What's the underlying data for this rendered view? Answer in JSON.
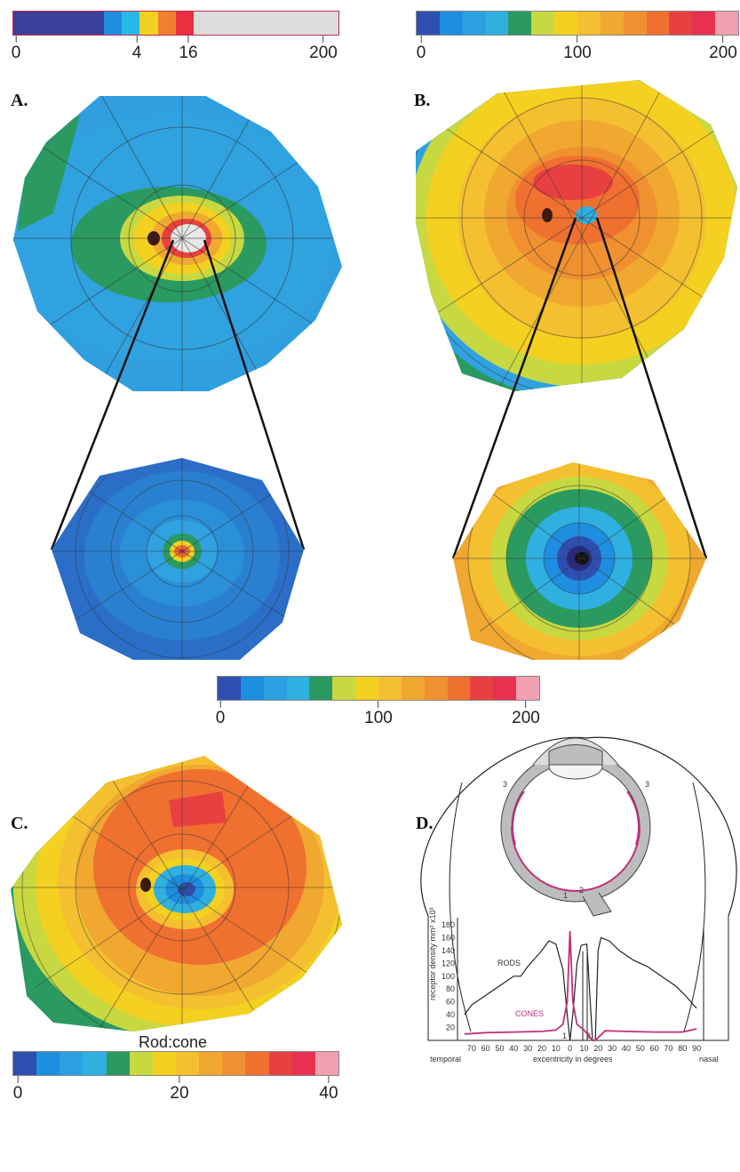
{
  "panels": {
    "a": "A.",
    "b": "B.",
    "c": "C.",
    "d": "D."
  },
  "scales": {
    "rod_scale_a": {
      "ticks": [
        "0",
        "4",
        "16",
        "200"
      ],
      "colors": [
        "#3a3f9a",
        "#3a3f9a",
        "#3a3f9a",
        "#3a3f9a",
        "#3a3f9a",
        "#1e8ee0",
        "#28b8e8",
        "#f4d020",
        "#f08030",
        "#e83040",
        "#dcdcdc",
        "#dcdcdc",
        "#dcdcdc",
        "#dcdcdc",
        "#dcdcdc",
        "#dcdcdc",
        "#dcdcdc",
        "#dcdcdc"
      ]
    },
    "top_right_scale": {
      "ticks": [
        "0",
        "100",
        "200"
      ],
      "colors": [
        "#2f4fb0",
        "#1e8ee0",
        "#2aa0e0",
        "#30b0e0",
        "#2a9a60",
        "#c8d840",
        "#f4d020",
        "#f4c030",
        "#f0a830",
        "#f09030",
        "#f07030",
        "#e84040",
        "#e83050",
        "#f0a0b0"
      ]
    },
    "middle_scale": {
      "ticks": [
        "0",
        "100",
        "200"
      ],
      "colors": [
        "#2f4fb0",
        "#1e8ee0",
        "#2aa0e0",
        "#30b0e0",
        "#2a9a60",
        "#c8d840",
        "#f4d020",
        "#f4c030",
        "#f0a830",
        "#f09030",
        "#f07030",
        "#e84040",
        "#e83050",
        "#f0a0b0"
      ]
    },
    "rod_cone_scale": {
      "title": "Rod:cone",
      "ticks": [
        "0",
        "20",
        "40"
      ],
      "colors": [
        "#2f4fb0",
        "#1e8ee0",
        "#2aa0e0",
        "#30b0e0",
        "#2a9a60",
        "#c8d840",
        "#f4d020",
        "#f4c030",
        "#f0a830",
        "#f09030",
        "#f07030",
        "#e84040",
        "#e83050",
        "#f0a0b0"
      ]
    }
  },
  "diagram_d": {
    "curve_labels": {
      "rods": "RODS",
      "cones": "CONES"
    },
    "y_axis_label": "receptor density mm² x10³",
    "y_ticks": [
      "180",
      "160",
      "140",
      "120",
      "100",
      "80",
      "60",
      "40",
      "20"
    ],
    "x_ticks": [
      "70",
      "60",
      "50",
      "40",
      "30",
      "20",
      "10",
      "0",
      "10",
      "20",
      "30",
      "40",
      "50",
      "60",
      "70",
      "80",
      "90"
    ],
    "x_label": "excentricity in degrees",
    "left_label": "temporal",
    "right_label": "nasal",
    "eye_marks": [
      "3",
      "3",
      "1",
      "2"
    ],
    "axis_marks": [
      "1",
      "2"
    ],
    "rods_curve": [
      [
        -75,
        40
      ],
      [
        -70,
        55
      ],
      [
        -60,
        70
      ],
      [
        -50,
        85
      ],
      [
        -40,
        100
      ],
      [
        -35,
        100
      ],
      [
        -30,
        115
      ],
      [
        -20,
        140
      ],
      [
        -15,
        155
      ],
      [
        -10,
        150
      ],
      [
        -5,
        110
      ],
      [
        -2,
        40
      ],
      [
        0,
        0
      ],
      [
        2,
        40
      ],
      [
        5,
        120
      ],
      [
        8,
        148
      ],
      [
        12,
        150
      ],
      [
        16,
        0
      ],
      [
        18,
        0
      ],
      [
        20,
        140
      ],
      [
        22,
        160
      ],
      [
        28,
        155
      ],
      [
        35,
        140
      ],
      [
        45,
        125
      ],
      [
        55,
        115
      ],
      [
        65,
        100
      ],
      [
        75,
        85
      ],
      [
        82,
        70
      ],
      [
        88,
        55
      ],
      [
        90,
        50
      ]
    ],
    "cones_curve": [
      [
        -75,
        10
      ],
      [
        -60,
        12
      ],
      [
        -40,
        13
      ],
      [
        -20,
        14
      ],
      [
        -10,
        16
      ],
      [
        -5,
        25
      ],
      [
        -2,
        60
      ],
      [
        0,
        170
      ],
      [
        2,
        60
      ],
      [
        5,
        25
      ],
      [
        10,
        16
      ],
      [
        16,
        0
      ],
      [
        18,
        0
      ],
      [
        25,
        15
      ],
      [
        40,
        14
      ],
      [
        60,
        13
      ],
      [
        80,
        13
      ],
      [
        90,
        18
      ]
    ]
  }
}
